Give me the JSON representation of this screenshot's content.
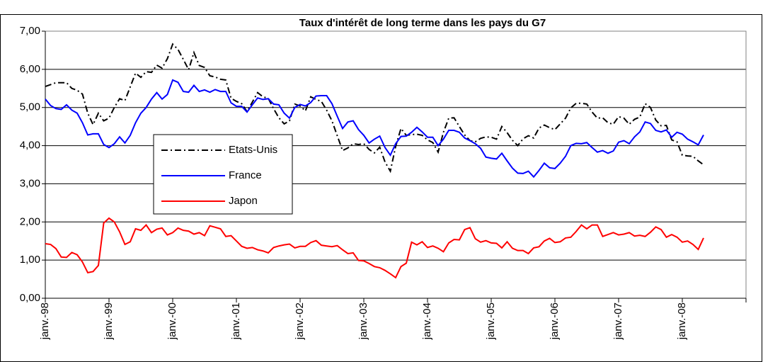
{
  "chart_data": {
    "type": "line",
    "title": "Taux d'intérêt de long terme dans les pays du G7",
    "categories": [
      "janv.-98",
      null,
      null,
      null,
      null,
      null,
      null,
      null,
      null,
      null,
      null,
      null,
      "janv.-99",
      null,
      null,
      null,
      null,
      null,
      null,
      null,
      null,
      null,
      null,
      null,
      "janv.-00",
      null,
      null,
      null,
      null,
      null,
      null,
      null,
      null,
      null,
      null,
      null,
      "janv.-01",
      null,
      null,
      null,
      null,
      null,
      null,
      null,
      null,
      null,
      null,
      null,
      "janv.-02",
      null,
      null,
      null,
      null,
      null,
      null,
      null,
      null,
      null,
      null,
      null,
      "janv.-03",
      null,
      null,
      null,
      null,
      null,
      null,
      null,
      null,
      null,
      null,
      null,
      "janv.-04",
      null,
      null,
      null,
      null,
      null,
      null,
      null,
      null,
      null,
      null,
      null,
      "janv.-05",
      null,
      null,
      null,
      null,
      null,
      null,
      null,
      null,
      null,
      null,
      null,
      "janv.-06",
      null,
      null,
      null,
      null,
      null,
      null,
      null,
      null,
      null,
      null,
      null,
      "janv.-07",
      null,
      null,
      null,
      null,
      null,
      null,
      null,
      null,
      null,
      null,
      null,
      "janv.-08",
      null,
      null,
      null,
      null,
      null,
      null,
      null,
      null,
      null,
      null,
      null
    ],
    "series": [
      {
        "name": "Etats-Unis",
        "color": "#000000",
        "dash": true,
        "values": [
          5.55,
          5.6,
          5.65,
          5.65,
          5.65,
          5.5,
          5.45,
          5.35,
          4.85,
          4.55,
          4.85,
          4.65,
          4.72,
          5.0,
          5.23,
          5.18,
          5.54,
          5.9,
          5.79,
          5.94,
          5.92,
          6.11,
          6.03,
          6.28,
          6.66,
          6.52,
          6.26,
          5.99,
          6.44,
          6.1,
          6.05,
          5.83,
          5.8,
          5.74,
          5.72,
          5.24,
          5.16,
          5.1,
          4.89,
          5.14,
          5.39,
          5.28,
          5.24,
          4.97,
          4.73,
          4.57,
          4.65,
          5.09,
          5.04,
          4.91,
          5.28,
          5.21,
          5.16,
          4.93,
          4.65,
          4.26,
          3.87,
          3.94,
          4.05,
          4.03,
          4.05,
          3.9,
          3.81,
          3.96,
          3.57,
          3.33,
          3.98,
          4.45,
          4.27,
          4.29,
          4.3,
          4.27,
          4.15,
          4.08,
          3.83,
          4.35,
          4.72,
          4.73,
          4.5,
          4.28,
          4.13,
          4.1,
          4.19,
          4.23,
          4.22,
          4.17,
          4.5,
          4.34,
          4.14,
          4.0,
          4.18,
          4.26,
          4.2,
          4.46,
          4.54,
          4.47,
          4.42,
          4.57,
          4.72,
          4.99,
          5.11,
          5.11,
          5.09,
          4.88,
          4.72,
          4.73,
          4.6,
          4.56,
          4.76,
          4.72,
          4.56,
          4.69,
          4.75,
          5.1,
          5.0,
          4.67,
          4.52,
          4.53,
          4.15,
          4.1,
          3.75,
          3.73,
          3.72,
          3.6,
          3.5,
          null,
          null,
          null,
          null,
          null,
          null,
          null
        ]
      },
      {
        "name": "France",
        "color": "#0000ff",
        "dash": false,
        "values": [
          5.22,
          5.05,
          4.97,
          4.95,
          5.07,
          4.93,
          4.85,
          4.6,
          4.28,
          4.31,
          4.31,
          4.03,
          3.95,
          4.05,
          4.23,
          4.07,
          4.27,
          4.6,
          4.85,
          5.0,
          5.22,
          5.39,
          5.22,
          5.34,
          5.72,
          5.66,
          5.42,
          5.4,
          5.58,
          5.42,
          5.46,
          5.4,
          5.47,
          5.42,
          5.42,
          5.12,
          5.03,
          5.03,
          4.88,
          5.07,
          5.25,
          5.21,
          5.23,
          5.09,
          5.07,
          4.85,
          4.72,
          5.0,
          5.08,
          5.04,
          5.13,
          5.3,
          5.31,
          5.31,
          5.1,
          4.77,
          4.45,
          4.62,
          4.65,
          4.42,
          4.27,
          4.07,
          4.17,
          4.25,
          3.95,
          3.75,
          4.05,
          4.24,
          4.25,
          4.35,
          4.48,
          4.36,
          4.22,
          4.22,
          4.0,
          4.17,
          4.4,
          4.4,
          4.35,
          4.2,
          4.13,
          4.05,
          3.93,
          3.7,
          3.67,
          3.65,
          3.8,
          3.6,
          3.41,
          3.28,
          3.27,
          3.33,
          3.18,
          3.35,
          3.54,
          3.42,
          3.4,
          3.54,
          3.72,
          4.0,
          4.06,
          4.05,
          4.08,
          3.95,
          3.83,
          3.87,
          3.8,
          3.86,
          4.09,
          4.13,
          4.05,
          4.23,
          4.36,
          4.62,
          4.58,
          4.4,
          4.36,
          4.41,
          4.22,
          4.35,
          4.3,
          4.17,
          4.1,
          4.02,
          4.28,
          null,
          null,
          null,
          null,
          null,
          null,
          null
        ]
      },
      {
        "name": "Japon",
        "color": "#ff0000",
        "dash": false,
        "values": [
          1.43,
          1.41,
          1.3,
          1.08,
          1.07,
          1.2,
          1.14,
          0.95,
          0.67,
          0.7,
          0.86,
          1.97,
          2.1,
          2.0,
          1.74,
          1.41,
          1.48,
          1.82,
          1.78,
          1.92,
          1.72,
          1.81,
          1.84,
          1.66,
          1.72,
          1.84,
          1.78,
          1.76,
          1.68,
          1.72,
          1.64,
          1.9,
          1.86,
          1.82,
          1.62,
          1.64,
          1.5,
          1.36,
          1.31,
          1.33,
          1.27,
          1.24,
          1.19,
          1.33,
          1.37,
          1.4,
          1.42,
          1.32,
          1.36,
          1.36,
          1.46,
          1.51,
          1.39,
          1.37,
          1.35,
          1.38,
          1.27,
          1.17,
          1.19,
          0.99,
          0.98,
          0.91,
          0.83,
          0.8,
          0.73,
          0.64,
          0.54,
          0.83,
          0.92,
          1.47,
          1.4,
          1.48,
          1.33,
          1.37,
          1.31,
          1.22,
          1.45,
          1.54,
          1.53,
          1.8,
          1.85,
          1.56,
          1.47,
          1.51,
          1.45,
          1.44,
          1.32,
          1.48,
          1.31,
          1.25,
          1.25,
          1.17,
          1.32,
          1.35,
          1.5,
          1.57,
          1.46,
          1.48,
          1.58,
          1.6,
          1.75,
          1.92,
          1.82,
          1.92,
          1.92,
          1.62,
          1.67,
          1.72,
          1.66,
          1.68,
          1.72,
          1.63,
          1.65,
          1.62,
          1.73,
          1.87,
          1.8,
          1.6,
          1.67,
          1.6,
          1.47,
          1.5,
          1.41,
          1.28,
          1.58,
          null,
          null,
          null,
          null,
          null,
          null,
          null
        ]
      }
    ],
    "ylim": [
      0,
      7
    ],
    "yticks": [
      {
        "value": 0,
        "label": "0,00"
      },
      {
        "value": 1,
        "label": "1,00"
      },
      {
        "value": 2,
        "label": "2,00"
      },
      {
        "value": 3,
        "label": "3,00"
      },
      {
        "value": 4,
        "label": "4,00"
      },
      {
        "value": 5,
        "label": "5,00"
      },
      {
        "value": 6,
        "label": "6,00"
      },
      {
        "value": 7,
        "label": "7,00"
      }
    ],
    "grid": true
  }
}
